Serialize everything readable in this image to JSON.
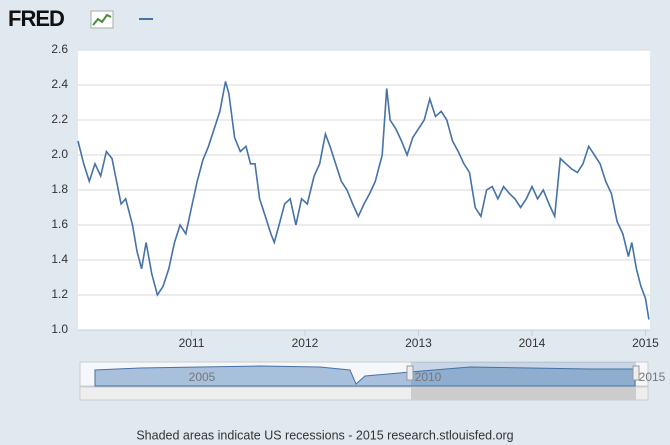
{
  "logo": "FRED",
  "footer": "Shaded areas indicate US recessions - 2015 research.stlouisfed.org",
  "navigator": {
    "labels": [
      "2005",
      "2010",
      "2015"
    ]
  },
  "chart_data": {
    "type": "line",
    "series": [
      {
        "color": "#4572a7",
        "x": [
          2010.0,
          2010.05,
          2010.1,
          2010.15,
          2010.2,
          2010.25,
          2010.3,
          2010.33,
          2010.38,
          2010.42,
          2010.48,
          2010.52,
          2010.56,
          2010.6,
          2010.65,
          2010.7,
          2010.75,
          2010.8,
          2010.85,
          2010.9,
          2010.95,
          2011.0,
          2011.05,
          2011.1,
          2011.15,
          2011.2,
          2011.25,
          2011.3,
          2011.33,
          2011.38,
          2011.43,
          2011.48,
          2011.52,
          2011.56,
          2011.6,
          2011.65,
          2011.7,
          2011.73,
          2011.78,
          2011.82,
          2011.87,
          2011.92,
          2011.97,
          2012.02,
          2012.08,
          2012.13,
          2012.18,
          2012.22,
          2012.27,
          2012.32,
          2012.37,
          2012.42,
          2012.47,
          2012.52,
          2012.57,
          2012.62,
          2012.68,
          2012.72,
          2012.75,
          2012.8,
          2012.85,
          2012.9,
          2012.95,
          2013.0,
          2013.05,
          2013.1,
          2013.15,
          2013.2,
          2013.25,
          2013.3,
          2013.35,
          2013.4,
          2013.45,
          2013.5,
          2013.55,
          2013.6,
          2013.65,
          2013.7,
          2013.75,
          2013.8,
          2013.85,
          2013.9,
          2013.95,
          2014.0,
          2014.05,
          2014.1,
          2014.15,
          2014.2,
          2014.25,
          2014.3,
          2014.35,
          2014.4,
          2014.45,
          2014.5,
          2014.55,
          2014.6,
          2014.65,
          2014.7,
          2014.75,
          2014.8,
          2014.85,
          2014.88,
          2014.92,
          2014.96,
          2015.0,
          2015.03
        ],
        "values": [
          2.08,
          1.95,
          1.85,
          1.95,
          1.88,
          2.02,
          1.98,
          1.88,
          1.72,
          1.75,
          1.6,
          1.45,
          1.35,
          1.5,
          1.32,
          1.2,
          1.25,
          1.35,
          1.5,
          1.6,
          1.55,
          1.7,
          1.85,
          1.97,
          2.05,
          2.15,
          2.25,
          2.42,
          2.35,
          2.1,
          2.02,
          2.05,
          1.95,
          1.95,
          1.75,
          1.65,
          1.55,
          1.5,
          1.62,
          1.72,
          1.75,
          1.6,
          1.75,
          1.72,
          1.88,
          1.95,
          2.12,
          2.05,
          1.95,
          1.85,
          1.8,
          1.72,
          1.65,
          1.72,
          1.78,
          1.85,
          2.0,
          2.38,
          2.2,
          2.15,
          2.08,
          2.0,
          2.1,
          2.15,
          2.2,
          2.32,
          2.22,
          2.25,
          2.2,
          2.08,
          2.02,
          1.95,
          1.9,
          1.7,
          1.65,
          1.8,
          1.82,
          1.75,
          1.82,
          1.78,
          1.75,
          1.7,
          1.75,
          1.82,
          1.75,
          1.8,
          1.72,
          1.65,
          1.98,
          1.95,
          1.92,
          1.9,
          1.95,
          2.05,
          2.0,
          1.95,
          1.85,
          1.78,
          1.62,
          1.55,
          1.42,
          1.5,
          1.35,
          1.25,
          1.18,
          1.06
        ]
      }
    ],
    "xlim": [
      2010.0,
      2015.04
    ],
    "xticks": [
      2011,
      2012,
      2013,
      2014,
      2015
    ],
    "ylim": [
      1.0,
      2.6
    ],
    "yticks": [
      {
        "value": 1.0,
        "label": "1.0"
      },
      1.2,
      1.4,
      1.6,
      1.8,
      {
        "value": 2.0,
        "label": "2.0"
      },
      2.2,
      2.4,
      2.6
    ],
    "grid": true
  }
}
